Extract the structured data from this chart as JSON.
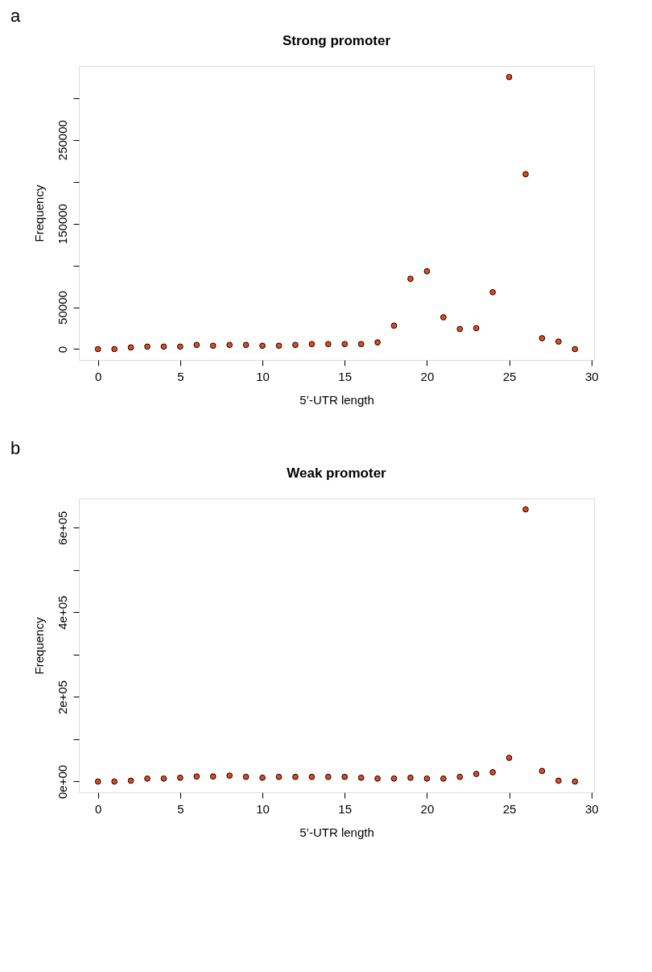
{
  "chart_data": [
    {
      "type": "scatter",
      "title": "Strong promoter",
      "xlabel": "5’-UTR length",
      "ylabel": "Frequency",
      "annotations": [
        "a"
      ],
      "marker": "circle",
      "grid": false,
      "x": [
        0,
        1,
        2,
        3,
        4,
        5,
        6,
        7,
        8,
        9,
        10,
        11,
        12,
        13,
        14,
        15,
        16,
        17,
        18,
        19,
        20,
        21,
        22,
        23,
        24,
        25,
        26,
        27,
        28,
        29
      ],
      "series": [
        {
          "color": "#e8461e",
          "values": [
            0,
            0,
            2000,
            3000,
            3000,
            3000,
            5000,
            4000,
            5000,
            5000,
            4000,
            4000,
            5000,
            6000,
            6000,
            6000,
            6000,
            8000,
            28000,
            84000,
            93000,
            38000,
            24000,
            25000,
            68000,
            325000,
            209000,
            13000,
            9000,
            0
          ]
        }
      ],
      "xlim": [
        -1.16,
        30.16
      ],
      "xticks": [
        0,
        5,
        10,
        15,
        20,
        25,
        30
      ],
      "ylim": [
        -13000,
        338200
      ],
      "yticks": [
        0,
        50000,
        {
          "value": 100000,
          "label": null
        },
        150000,
        {
          "value": 200000,
          "label": null
        },
        250000,
        {
          "value": 300000,
          "label": null
        }
      ]
    },
    {
      "type": "scatter",
      "title": "Weak promoter",
      "xlabel": "5’-UTR length",
      "ylabel": "Frequency",
      "annotations": [
        "b"
      ],
      "marker": "circle",
      "grid": false,
      "x": [
        0,
        1,
        2,
        3,
        4,
        5,
        6,
        7,
        8,
        9,
        10,
        11,
        12,
        13,
        14,
        15,
        16,
        17,
        18,
        19,
        20,
        21,
        22,
        23,
        24,
        25,
        26,
        27,
        28,
        29
      ],
      "series": [
        {
          "color": "#e8461e",
          "values": [
            0,
            0,
            2000,
            7000,
            7000,
            9000,
            12000,
            12000,
            14000,
            11000,
            9000,
            11000,
            11000,
            11000,
            11000,
            11000,
            9000,
            7000,
            7000,
            9000,
            7000,
            7000,
            11000,
            18000,
            22000,
            56000,
            643000,
            25000,
            2000,
            0
          ]
        }
      ],
      "xlim": [
        -1.16,
        30.16
      ],
      "xticks": [
        0,
        5,
        10,
        15,
        20,
        25,
        30
      ],
      "ylim": [
        -25700,
        668700
      ],
      "yticks": [
        {
          "value": 0,
          "label": "0e+00"
        },
        {
          "value": 100000,
          "label": null
        },
        {
          "value": 200000,
          "label": "2e+05"
        },
        {
          "value": 300000,
          "label": null
        },
        {
          "value": 400000,
          "label": "4e+05"
        },
        {
          "value": 500000,
          "label": null
        },
        {
          "value": 600000,
          "label": "6e+05"
        }
      ]
    }
  ]
}
